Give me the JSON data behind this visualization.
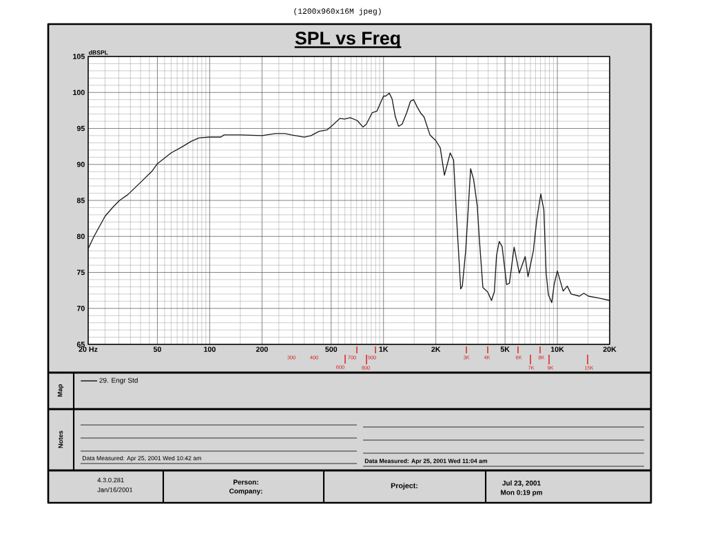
{
  "chart_data": {
    "type": "line",
    "title": "SPL vs Freq",
    "ylabel": "dBSPL",
    "log": "x",
    "xlim": [
      20,
      20000
    ],
    "ylim": [
      65,
      105
    ],
    "xticks": [
      {
        "value": 20,
        "label": "20 Hz"
      },
      50,
      100,
      200,
      500,
      {
        "value": 1000,
        "label": "1K"
      },
      {
        "value": 2000,
        "label": "2K"
      },
      {
        "value": 5000,
        "label": "5K"
      },
      {
        "value": 10000,
        "label": "10K"
      },
      {
        "value": 20000,
        "label": "20K"
      }
    ],
    "yticks": [
      65,
      70,
      75,
      80,
      85,
      90,
      95,
      100,
      105
    ],
    "grid": true,
    "legend": "bottom",
    "marker": "none",
    "line_style": "solid",
    "series": [
      {
        "name": "29. Engr Std",
        "color": "#1a1a1a",
        "x": [
          20,
          21.6,
          25,
          27.6,
          30.3,
          33.8,
          40,
          46.7,
          50,
          60,
          70,
          78,
          87,
          100,
          116,
          121,
          150,
          200,
          240,
          270,
          295,
          350,
          383,
          426,
          474,
          512,
          561,
          596,
          644,
          706,
          762,
          797,
          861,
          915,
          1000,
          1030,
          1080,
          1120,
          1170,
          1220,
          1280,
          1360,
          1430,
          1490,
          1560,
          1640,
          1710,
          1850,
          2000,
          2120,
          2240,
          2420,
          2530,
          2630,
          2780,
          2840,
          2970,
          3170,
          3300,
          3460,
          3560,
          3730,
          3970,
          4180,
          4340,
          4470,
          4630,
          4810,
          5110,
          5300,
          5640,
          6040,
          6530,
          6780,
          7280,
          7620,
          8030,
          8360,
          8620,
          8880,
          9290,
          9580,
          10000,
          10800,
          11400,
          12000,
          13400,
          14200,
          15100,
          17600,
          20000
        ],
        "values": [
          78.3,
          80.0,
          82.8,
          84.0,
          85.0,
          85.8,
          87.5,
          89.1,
          90.1,
          91.6,
          92.5,
          93.2,
          93.7,
          93.8,
          93.8,
          94.1,
          94.1,
          94.0,
          94.3,
          94.3,
          94.1,
          93.8,
          94.0,
          94.6,
          94.8,
          95.5,
          96.4,
          96.3,
          96.5,
          96.1,
          95.2,
          95.6,
          97.2,
          97.4,
          99.5,
          99.5,
          99.9,
          99.1,
          96.6,
          95.3,
          95.6,
          97.2,
          98.8,
          99.0,
          98.0,
          97.1,
          96.6,
          94.1,
          93.3,
          92.3,
          88.5,
          91.6,
          90.6,
          82.7,
          72.7,
          73.1,
          78.0,
          89.4,
          87.9,
          84.3,
          79.6,
          72.9,
          72.3,
          71.1,
          72.3,
          77.4,
          79.3,
          78.6,
          73.3,
          73.5,
          78.5,
          74.9,
          77.2,
          74.4,
          78.0,
          82.4,
          85.9,
          83.7,
          74.9,
          71.9,
          70.8,
          73.3,
          75.2,
          72.4,
          73.1,
          72.0,
          71.7,
          72.1,
          71.7,
          71.4,
          71.1
        ]
      }
    ],
    "annotations": [
      "(1200x960x16M jpeg)",
      "Map",
      "Notes",
      "Data Measured: Apr 25, 2001 Wed 10:42 am",
      "Data Measured: Apr 25, 2001 Wed 11:04 am",
      "4.3.0.281",
      "Jan/16/2001",
      "Person:",
      "Company:",
      "Project:",
      "Jul 23, 2001",
      "Mon 0:19 pm",
      "300",
      "400",
      "600",
      "700",
      "800",
      "900",
      "3K",
      "4K",
      "6K",
      "7K",
      "8K",
      "9K",
      "15K"
    ]
  }
}
